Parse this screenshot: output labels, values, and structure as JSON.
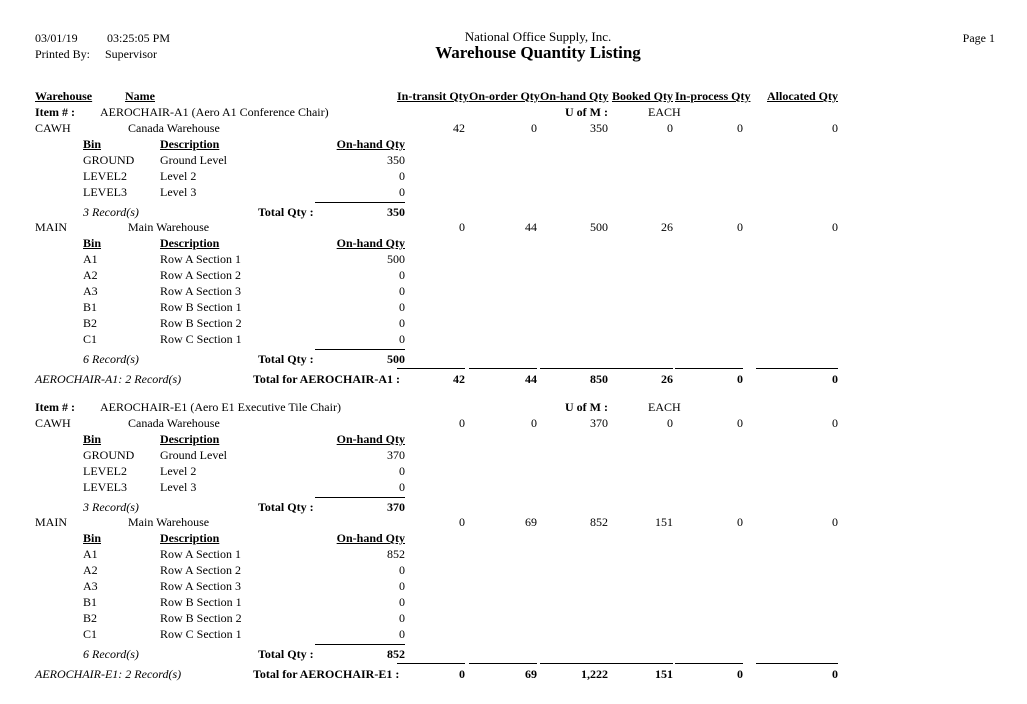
{
  "page": {
    "date": "03/01/19",
    "time": "03:25:05 PM",
    "printed_by_label": "Printed By:",
    "printed_by": "Supervisor",
    "company": "National Office Supply, Inc.",
    "title": "Warehouse Quantity Listing",
    "page_label": "Page 1"
  },
  "columns": {
    "warehouse": "Warehouse",
    "name": "Name",
    "qty": [
      "In-transit Qty",
      "On-order Qty",
      "On-hand Qty",
      "Booked Qty",
      "In-process Qty",
      "Allocated Qty"
    ]
  },
  "bin_columns": {
    "bin": "Bin",
    "description": "Description",
    "on_hand": "On-hand Qty"
  },
  "labels": {
    "item_no": "Item # :",
    "uom": "U of M :",
    "total_qty": "Total Qty :"
  },
  "items": [
    {
      "name": "AEROCHAIR-A1 (Aero A1 Conference Chair)",
      "uom": "EACH",
      "warehouses": [
        {
          "code": "CAWH",
          "name": "Canada Warehouse",
          "qtys": [
            "42",
            "0",
            "350",
            "0",
            "0",
            "0"
          ],
          "bins": [
            {
              "bin": "GROUND",
              "desc": "Ground Level",
              "qty": "350"
            },
            {
              "bin": "LEVEL2",
              "desc": "Level 2",
              "qty": "0"
            },
            {
              "bin": "LEVEL3",
              "desc": "Level 3",
              "qty": "0"
            }
          ],
          "records": "3 Record(s)",
          "total_qty": "350"
        },
        {
          "code": "MAIN",
          "name": "Main Warehouse",
          "qtys": [
            "0",
            "44",
            "500",
            "26",
            "0",
            "0"
          ],
          "bins": [
            {
              "bin": "A1",
              "desc": "Row A Section 1",
              "qty": "500"
            },
            {
              "bin": "A2",
              "desc": "Row A Section 2",
              "qty": "0"
            },
            {
              "bin": "A3",
              "desc": "Row A Section 3",
              "qty": "0"
            },
            {
              "bin": "B1",
              "desc": "Row B Section 1",
              "qty": "0"
            },
            {
              "bin": "B2",
              "desc": "Row B Section 2",
              "qty": "0"
            },
            {
              "bin": "C1",
              "desc": "Row C Section 1",
              "qty": "0"
            }
          ],
          "records": "6 Record(s)",
          "total_qty": "500"
        }
      ],
      "summary": {
        "records": "AEROCHAIR-A1: 2 Record(s)",
        "label": "Total for AEROCHAIR-A1 :",
        "qtys": [
          "42",
          "44",
          "850",
          "26",
          "0",
          "0"
        ]
      }
    },
    {
      "name": "AEROCHAIR-E1 (Aero E1 Executive Tile Chair)",
      "uom": "EACH",
      "warehouses": [
        {
          "code": "CAWH",
          "name": "Canada Warehouse",
          "qtys": [
            "0",
            "0",
            "370",
            "0",
            "0",
            "0"
          ],
          "bins": [
            {
              "bin": "GROUND",
              "desc": "Ground Level",
              "qty": "370"
            },
            {
              "bin": "LEVEL2",
              "desc": "Level 2",
              "qty": "0"
            },
            {
              "bin": "LEVEL3",
              "desc": "Level 3",
              "qty": "0"
            }
          ],
          "records": "3 Record(s)",
          "total_qty": "370"
        },
        {
          "code": "MAIN",
          "name": "Main Warehouse",
          "qtys": [
            "0",
            "69",
            "852",
            "151",
            "0",
            "0"
          ],
          "bins": [
            {
              "bin": "A1",
              "desc": "Row A Section 1",
              "qty": "852"
            },
            {
              "bin": "A2",
              "desc": "Row A Section 2",
              "qty": "0"
            },
            {
              "bin": "A3",
              "desc": "Row A Section 3",
              "qty": "0"
            },
            {
              "bin": "B1",
              "desc": "Row B Section 1",
              "qty": "0"
            },
            {
              "bin": "B2",
              "desc": "Row B Section 2",
              "qty": "0"
            },
            {
              "bin": "C1",
              "desc": "Row C Section 1",
              "qty": "0"
            }
          ],
          "records": "6 Record(s)",
          "total_qty": "852"
        }
      ],
      "summary": {
        "records": "AEROCHAIR-E1: 2 Record(s)",
        "label": "Total for AEROCHAIR-E1 :",
        "qtys": [
          "0",
          "69",
          "1,222",
          "151",
          "0",
          "0"
        ]
      }
    }
  ]
}
